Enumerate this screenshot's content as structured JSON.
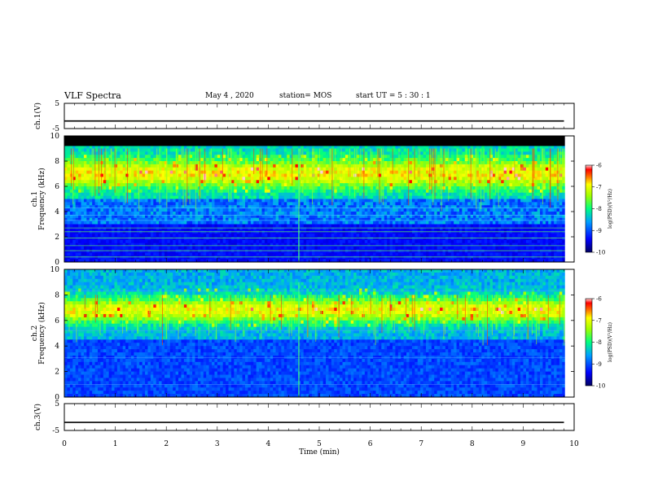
{
  "header": {
    "title": "VLF Spectra",
    "date": "May 4 , 2020",
    "station": "station= MOS",
    "start": "start UT = 5 : 30 : 1"
  },
  "colors": {
    "spectrogram_scale": [
      "#000080",
      "#0000ff",
      "#0080ff",
      "#00ffff",
      "#00ff80",
      "#80ff00",
      "#ffff00",
      "#ff8000",
      "#ff0000",
      "#ffc0c0"
    ]
  },
  "chart_data": [
    {
      "type": "line",
      "name": "ch1-voltage",
      "ylabel": "ch.1(V)",
      "ylim": [
        -5,
        5
      ],
      "yticks": [
        "5",
        "-5"
      ],
      "x": [
        0,
        9.8
      ],
      "values": [
        -2,
        -2
      ]
    },
    {
      "type": "heatmap",
      "name": "ch1-spectrogram",
      "ylabel": "ch.1\nFrequency (kHz)",
      "ylim": [
        0,
        10
      ],
      "yticks": [
        "0",
        "2",
        "4",
        "6",
        "8",
        "10"
      ],
      "xlim": [
        0,
        10
      ],
      "colorbar": {
        "label": "log(PSD)(V²/Hz)",
        "range": [
          -10,
          -6
        ],
        "ticks": [
          "-6",
          "-7",
          "-8",
          "-9",
          "-10"
        ]
      }
    },
    {
      "type": "heatmap",
      "name": "ch2-spectrogram",
      "ylabel": "ch.2\nFrequency (kHz)",
      "ylim": [
        0,
        10
      ],
      "yticks": [
        "0",
        "2",
        "4",
        "6",
        "8",
        "10"
      ],
      "xlim": [
        0,
        10
      ],
      "colorbar": {
        "label": "log(PSD)(V²/Hz)",
        "range": [
          -10,
          -6
        ],
        "ticks": [
          "-6",
          "-7",
          "-8",
          "-9",
          "-10"
        ]
      }
    },
    {
      "type": "line",
      "name": "ch3-voltage",
      "ylabel": "ch.3(V)",
      "ylim": [
        -5,
        5
      ],
      "yticks": [
        "5",
        "-5"
      ],
      "x": [
        0,
        9.8
      ],
      "values": [
        -2,
        -2
      ]
    }
  ],
  "xaxis": {
    "label": "Time (min)",
    "ticks": [
      "0",
      "1",
      "2",
      "3",
      "4",
      "5",
      "6",
      "7",
      "8",
      "9",
      "10"
    ]
  }
}
